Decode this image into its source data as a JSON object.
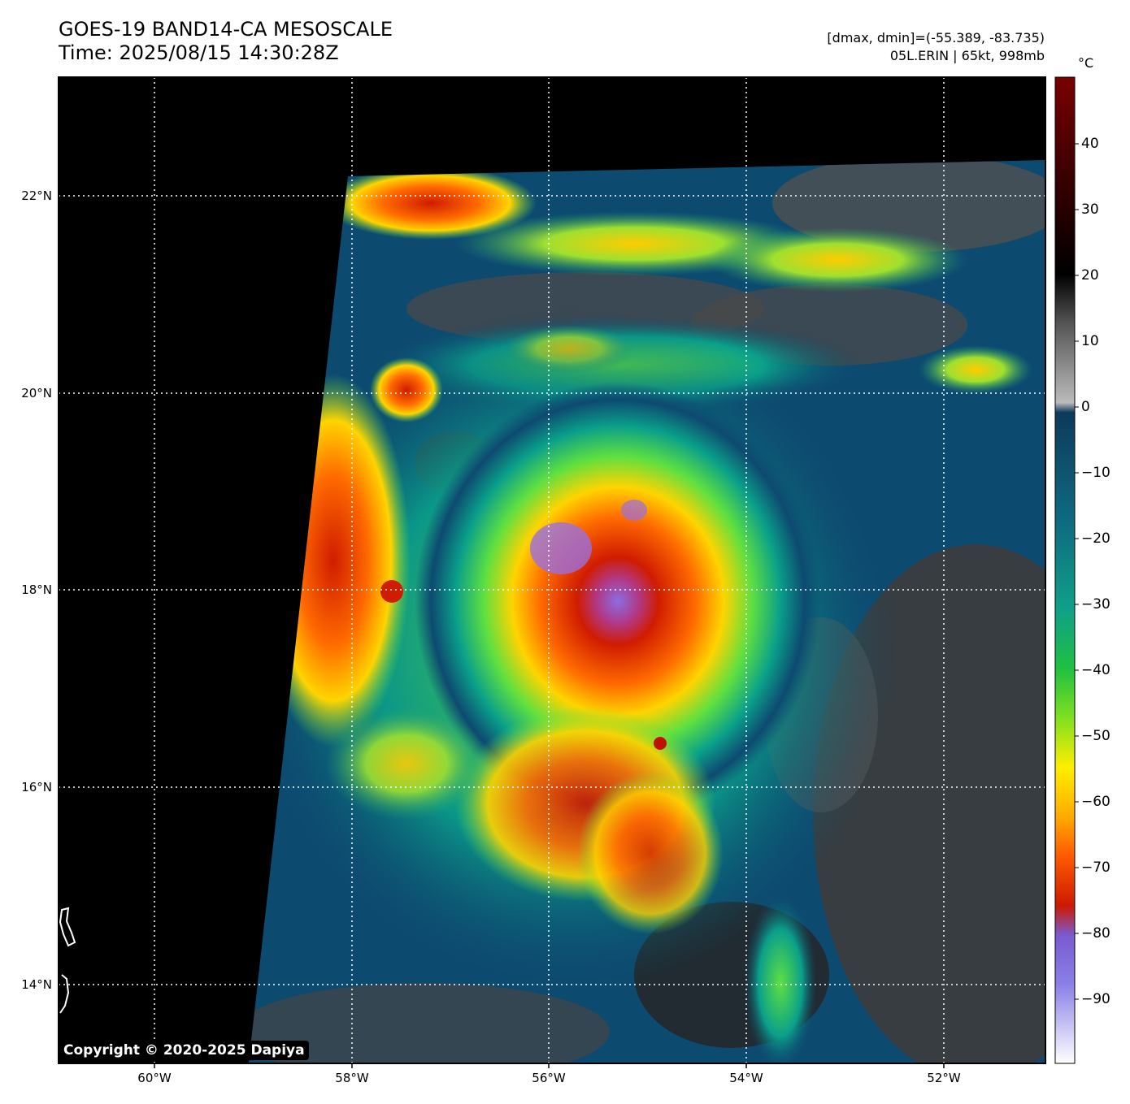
{
  "title": {
    "line1": "GOES-19 BAND14-CA MESOSCALE",
    "line2": "Time: 2025/08/15 14:30:28Z"
  },
  "info": {
    "range": "[dmax, dmin]=(-55.389, -83.735)",
    "storm": "05L.ERIN | 65kt, 998mb"
  },
  "map": {
    "lat_labels": [
      "22°N",
      "20°N",
      "18°N",
      "16°N",
      "14°N"
    ],
    "lon_labels": [
      "60°W",
      "58°W",
      "56°W",
      "54°W",
      "52°W"
    ],
    "storm_center": {
      "lon": -55.5,
      "lat": 18.2
    }
  },
  "colorbar": {
    "unit": "°C",
    "ticks": [
      "40",
      "30",
      "20",
      "10",
      "0",
      "−10",
      "−20",
      "−30",
      "−40",
      "−50",
      "−60",
      "−70",
      "−80",
      "−90"
    ],
    "colors": [
      "#ffffff",
      "#8a6ee0",
      "#cc2200",
      "#ff7a00",
      "#ffe000",
      "#50e040",
      "#0a9f8a",
      "#0d3f66",
      "#999999",
      "#000000",
      "#6b0000"
    ]
  },
  "copyright": "Copyright © 2020-2025 Dapiya"
}
